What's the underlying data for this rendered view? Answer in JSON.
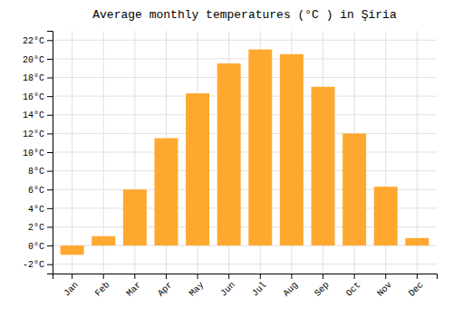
{
  "chart_data": {
    "type": "bar",
    "title": "Average monthly temperatures (°C ) in Şiria",
    "categories": [
      "Jan",
      "Feb",
      "Mar",
      "Apr",
      "May",
      "Jun",
      "Jul",
      "Aug",
      "Sep",
      "Oct",
      "Nov",
      "Dec"
    ],
    "values": [
      -1.0,
      1.0,
      6.0,
      11.5,
      16.3,
      19.5,
      21.0,
      20.5,
      17.0,
      12.0,
      6.3,
      0.8
    ],
    "color": "#FFA830",
    "ylim": [
      -3,
      23
    ],
    "yticks": [
      {
        "value": -2,
        "label": "-2°C"
      },
      {
        "value": 0,
        "label": "0°C"
      },
      {
        "value": 2,
        "label": "2°C"
      },
      {
        "value": 4,
        "label": "4°C"
      },
      {
        "value": 6,
        "label": "6°C"
      },
      {
        "value": 8,
        "label": "8°C"
      },
      {
        "value": 10,
        "label": "10°C"
      },
      {
        "value": 12,
        "label": "12°C"
      },
      {
        "value": 14,
        "label": "14°C"
      },
      {
        "value": 16,
        "label": "16°C"
      },
      {
        "value": 18,
        "label": "18°C"
      },
      {
        "value": 20,
        "label": "20°C"
      },
      {
        "value": 22,
        "label": "22°C"
      }
    ],
    "grid": true
  }
}
